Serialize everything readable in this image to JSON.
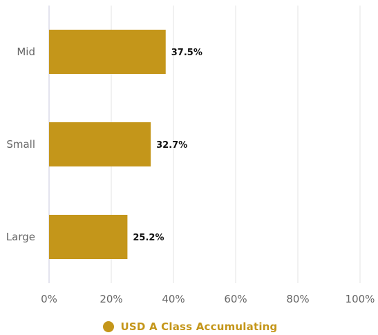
{
  "colors": {
    "bar": "#C4961A",
    "legend_text": "#C4961A",
    "axis_text": "#666666",
    "grid": "#E3E3E3",
    "axis_line": "#C8C8DC",
    "data_label": "#111111"
  },
  "chart_data": {
    "type": "bar",
    "orientation": "horizontal",
    "categories": [
      "Mid",
      "Small",
      "Large"
    ],
    "series": [
      {
        "name": "USD A Class Accumulating",
        "values": [
          37.5,
          32.7,
          25.2
        ]
      }
    ],
    "data_labels": [
      "37.5%",
      "32.7%",
      "25.2%"
    ],
    "x_ticks": [
      "0%",
      "20%",
      "40%",
      "60%",
      "80%",
      "100%"
    ],
    "xlim": [
      0,
      100
    ],
    "grid": true,
    "legend_position": "bottom-center"
  },
  "legend": {
    "label": "USD A Class Accumulating"
  }
}
